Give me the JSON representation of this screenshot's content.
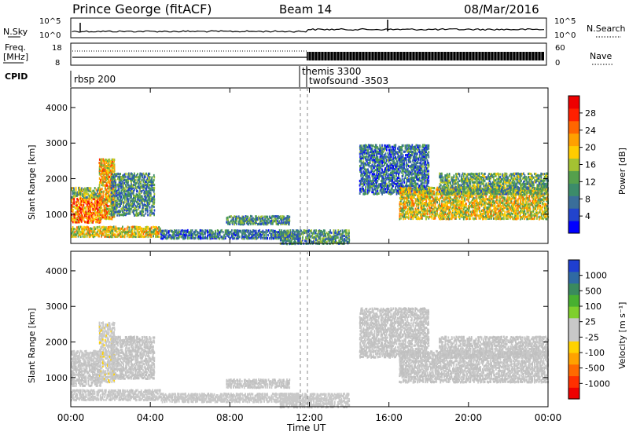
{
  "header": {
    "station": "Prince George (fitACF)",
    "beam": "Beam 14",
    "date": "08/Mar/2016"
  },
  "noise_panel": {
    "left_label": "N.Sky",
    "right_label": "N.Search",
    "left_ticks": [
      "10^5",
      "10^0"
    ],
    "right_ticks": [
      "10^5",
      "10^0"
    ]
  },
  "freq_panel": {
    "left_label_1": "Freq.",
    "left_label_2": "[MHz]",
    "right_label": "Nave",
    "left_ticks": [
      "18",
      "8"
    ],
    "right_ticks": [
      "60",
      "0"
    ]
  },
  "cpid": {
    "label": "CPID",
    "segments": [
      "rbsp 200",
      "themis 3300",
      "twofsound -3503"
    ]
  },
  "power_panel": {
    "ylabel": "Slant Range [km]",
    "yticks": [
      "4000",
      "3000",
      "2000",
      "1000"
    ],
    "colorbar_label": "Power [dB]",
    "colorbar_ticks": [
      "28",
      "24",
      "20",
      "16",
      "12",
      "8",
      "4"
    ],
    "colors": [
      "#0000ff",
      "#2244cc",
      "#3a6e9a",
      "#3c8c6a",
      "#55a04c",
      "#a4c232",
      "#ffcc00",
      "#ffa000",
      "#ff6600",
      "#ff2000",
      "#ee0000"
    ]
  },
  "velocity_panel": {
    "ylabel": "Slant Range [km]",
    "yticks": [
      "4000",
      "3000",
      "2000",
      "1000"
    ],
    "colorbar_label": "Velocity [m s⁻¹]",
    "colorbar_ticks": [
      "1000",
      "500",
      "100",
      "25",
      "-25",
      "-100",
      "-500",
      "-1000"
    ],
    "colors": [
      "#1f3fd1",
      "#2f6aa3",
      "#3a8a5e",
      "#48b030",
      "#7fcf2c",
      "#c8c8c8",
      "#c8c8c8",
      "#ffd200",
      "#ffa200",
      "#ff6a00",
      "#ff3000",
      "#ee0000"
    ],
    "ground_scatter_color": "#c0c0c0"
  },
  "x_axis": {
    "label": "Time UT",
    "ticks": [
      "00:00",
      "04:00",
      "08:00",
      "12:00",
      "16:00",
      "20:00",
      "00:00"
    ]
  },
  "chart_data": {
    "type": "heatmap",
    "title": "Prince George (fitACF)",
    "subtitle": "Beam 14  08/Mar/2016",
    "xlabel": "Time UT",
    "ylabel": "Slant Range [km]",
    "xlim_hours": [
      0,
      24
    ],
    "ylim_km": [
      180,
      4550
    ],
    "cpid_changes_hours": [
      11.75,
      12.05
    ],
    "power_db_range": [
      0,
      32
    ],
    "velocity_range_ms": [
      -1000,
      1000
    ],
    "scatter_regions": [
      {
        "t_start": 0.0,
        "t_end": 1.5,
        "range_km": [
          800,
          1500
        ],
        "power_db": 24,
        "velocity": -20
      },
      {
        "t_start": 0.0,
        "t_end": 1.5,
        "range_km": [
          1500,
          1800
        ],
        "power_db": 14,
        "velocity": -60
      },
      {
        "t_start": 1.4,
        "t_end": 2.2,
        "range_km": [
          900,
          2600
        ],
        "power_db": 20,
        "velocity": -150
      },
      {
        "t_start": 2.0,
        "t_end": 4.2,
        "range_km": [
          1000,
          2200
        ],
        "power_db": 10,
        "velocity": 0
      },
      {
        "t_start": 0.0,
        "t_end": 4.5,
        "range_km": [
          400,
          700
        ],
        "power_db": 18,
        "velocity": 50
      },
      {
        "t_start": 4.5,
        "t_end": 11.5,
        "range_km": [
          350,
          600
        ],
        "power_db": 8,
        "velocity": 60
      },
      {
        "t_start": 7.8,
        "t_end": 11.0,
        "range_km": [
          750,
          1000
        ],
        "power_db": 10,
        "velocity": -30
      },
      {
        "t_start": 10.5,
        "t_end": 14.0,
        "range_km": [
          200,
          600
        ],
        "power_db": 10,
        "velocity": -80
      },
      {
        "t_start": 14.5,
        "t_end": 18.0,
        "range_km": [
          1600,
          3000
        ],
        "power_db": 8,
        "velocity": 0
      },
      {
        "t_start": 16.5,
        "t_end": 24.0,
        "range_km": [
          900,
          1800
        ],
        "power_db": 18,
        "velocity": 0
      },
      {
        "t_start": 18.5,
        "t_end": 24.0,
        "range_km": [
          1600,
          2200
        ],
        "power_db": 12,
        "velocity": 0
      }
    ],
    "ground_scatter": "grey in velocity panel (|v| < 25 m/s)"
  }
}
